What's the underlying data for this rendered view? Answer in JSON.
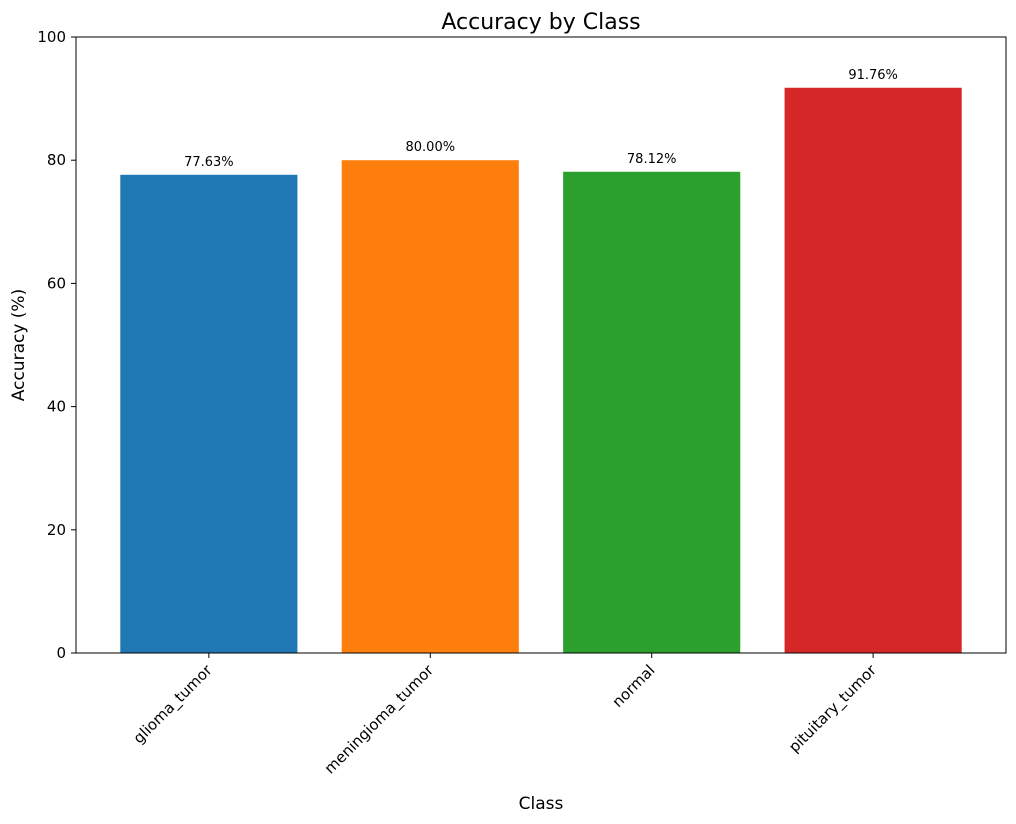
{
  "chart_data": {
    "type": "bar",
    "title": "Accuracy by Class",
    "xlabel": "Class",
    "ylabel": "Accuracy (%)",
    "categories": [
      "glioma_tumor",
      "meningioma_tumor",
      "normal",
      "pituitary_tumor"
    ],
    "values": [
      77.63,
      80.0,
      78.12,
      91.76
    ],
    "data_labels": [
      "77.63%",
      "80.00%",
      "78.12%",
      "91.76%"
    ],
    "colors": [
      "#1f77b4",
      "#ff7f0e",
      "#2ca02c",
      "#d62728"
    ],
    "ylim": [
      0,
      100
    ],
    "yticks": [
      0,
      20,
      40,
      60,
      80,
      100
    ],
    "ytick_labels": [
      "0",
      "20",
      "40",
      "60",
      "80",
      "100"
    ],
    "grid": false,
    "legend": "none"
  }
}
